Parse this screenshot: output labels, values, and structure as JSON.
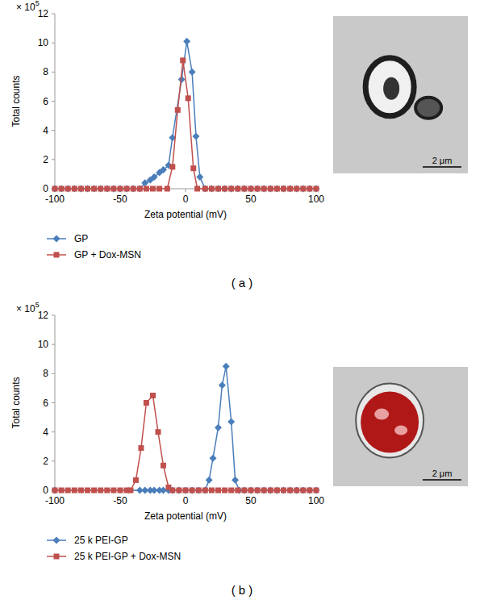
{
  "chart_data": [
    {
      "type": "line",
      "label": "( a )",
      "xlabel": "Zeta potential (mV)",
      "ylabel": "Total counts",
      "y_multiplier": {
        "text": "× 10",
        "exponent": "5"
      },
      "image_scale_bar": "2 μm",
      "xlim": [
        -100,
        100
      ],
      "xticks": [
        -100,
        -50,
        0,
        50,
        100
      ],
      "ylim": [
        0,
        12
      ],
      "yticks": [
        0,
        2,
        4,
        6,
        8,
        10,
        12
      ],
      "grid": false,
      "legend": "bottom",
      "series": [
        {
          "name": "GP",
          "color": "#4a7ebb",
          "marker": "diamond",
          "x": [
            -100,
            -95,
            -90,
            -85,
            -80,
            -75,
            -70,
            -65,
            -60,
            -55,
            -50,
            -45,
            -40,
            -35,
            -31,
            -27,
            -24,
            -20,
            -17,
            -13,
            -10,
            -3,
            1,
            5,
            8,
            11,
            15,
            20,
            25,
            30,
            35,
            40,
            45,
            50,
            55,
            60,
            65,
            70,
            75,
            80,
            85,
            90,
            95,
            100
          ],
          "values": [
            0,
            0,
            0,
            0,
            0,
            0,
            0,
            0,
            0,
            0,
            0,
            0,
            0,
            0,
            0.4,
            0.6,
            0.8,
            1.1,
            1.3,
            1.6,
            3.5,
            7.5,
            10.1,
            8.0,
            3.6,
            0.8,
            0,
            0,
            0,
            0,
            0,
            0,
            0,
            0,
            0,
            0,
            0,
            0,
            0,
            0,
            0,
            0,
            0,
            0
          ]
        },
        {
          "name": "GP + Dox-MSN",
          "color": "#c0504d",
          "marker": "square",
          "x": [
            -100,
            -95,
            -90,
            -85,
            -80,
            -75,
            -70,
            -65,
            -60,
            -55,
            -50,
            -45,
            -40,
            -35,
            -30,
            -25,
            -20,
            -14,
            -10,
            -6,
            -2,
            2,
            6,
            9,
            15,
            20,
            25,
            30,
            35,
            40,
            45,
            50,
            55,
            60,
            65,
            70,
            75,
            80,
            85,
            90,
            95,
            100
          ],
          "values": [
            0,
            0,
            0,
            0,
            0,
            0,
            0,
            0,
            0,
            0,
            0,
            0,
            0,
            0,
            0,
            0,
            0,
            0,
            1.5,
            5.4,
            8.8,
            6.2,
            1.4,
            0,
            0,
            0,
            0,
            0,
            0,
            0,
            0,
            0,
            0,
            0,
            0,
            0,
            0,
            0,
            0,
            0,
            0,
            0
          ]
        }
      ]
    },
    {
      "type": "line",
      "label": "( b )",
      "xlabel": "Zeta potential (mV)",
      "ylabel": "Total counts",
      "y_multiplier": {
        "text": "× 10",
        "exponent": "5"
      },
      "image_scale_bar": "2 μm",
      "xlim": [
        -100,
        100
      ],
      "xticks": [
        -100,
        -50,
        0,
        50,
        100
      ],
      "ylim": [
        0,
        12
      ],
      "yticks": [
        0,
        2,
        4,
        6,
        8,
        10,
        12
      ],
      "grid": false,
      "legend": "bottom",
      "series": [
        {
          "name": "25 k PEI-GP",
          "color": "#4a7ebb",
          "marker": "diamond",
          "x": [
            -100,
            -35,
            -31,
            -27,
            -24,
            -20,
            -17,
            -13,
            -10,
            -5,
            0,
            5,
            10,
            15,
            18,
            21,
            25,
            28,
            31,
            35,
            38,
            41,
            45,
            50,
            55,
            60,
            65,
            70,
            75,
            80,
            85,
            90,
            95,
            100
          ],
          "values": [
            0,
            0,
            0,
            0,
            0,
            0,
            0,
            0,
            0,
            0,
            0,
            0,
            0,
            0,
            0.7,
            2.2,
            4.3,
            7.2,
            8.5,
            4.7,
            0.7,
            0,
            0,
            0,
            0,
            0,
            0,
            0,
            0,
            0,
            0,
            0,
            0,
            0
          ]
        },
        {
          "name": "25 k PEI-GP + Dox-MSN",
          "color": "#c0504d",
          "marker": "square",
          "x": [
            -100,
            -95,
            -90,
            -85,
            -80,
            -75,
            -70,
            -65,
            -60,
            -55,
            -50,
            -45,
            -42,
            -38,
            -34,
            -30,
            -25,
            -21,
            -17,
            -13,
            -10,
            -5,
            0,
            5,
            10,
            15,
            20,
            25,
            30,
            35,
            40,
            45,
            50,
            55,
            60,
            65,
            70,
            75,
            80,
            85,
            90,
            95,
            100
          ],
          "values": [
            0,
            0,
            0,
            0,
            0,
            0,
            0,
            0,
            0,
            0,
            0,
            0,
            0,
            0.7,
            2.9,
            6.0,
            6.5,
            4.0,
            1.7,
            0.2,
            0,
            0,
            0,
            0,
            0,
            0,
            0,
            0,
            0,
            0,
            0,
            0,
            0,
            0,
            0,
            0,
            0,
            0,
            0,
            0,
            0,
            0,
            0
          ]
        }
      ]
    }
  ]
}
